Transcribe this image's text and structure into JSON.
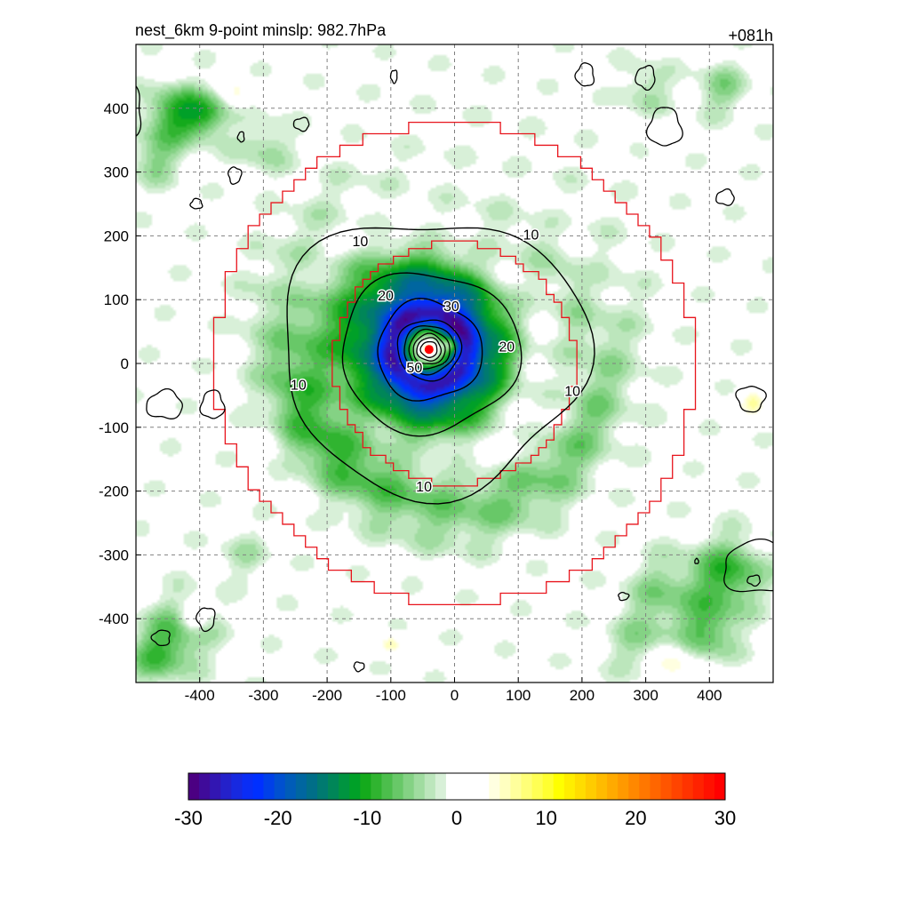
{
  "chart_data": {
    "type": "heatmap",
    "title_left": "nest_6km  9-point minslp: 982.7hPa",
    "title_right": "+081h",
    "xlim": [
      -500,
      500
    ],
    "ylim": [
      -500,
      500
    ],
    "x_ticks": [
      -400,
      -300,
      -200,
      -100,
      0,
      100,
      200,
      300,
      400
    ],
    "y_ticks": [
      -400,
      -300,
      -200,
      -100,
      0,
      100,
      200,
      300,
      400
    ],
    "grid": true,
    "storm_center": [
      -40,
      22
    ],
    "contour_levels": [
      10,
      20,
      30,
      40,
      50,
      60,
      70
    ],
    "contour_labels": [
      {
        "text": "10",
        "x": -148,
        "y": 190
      },
      {
        "text": "10",
        "x": 120,
        "y": 200
      },
      {
        "text": "10",
        "x": -245,
        "y": -35
      },
      {
        "text": "10",
        "x": -48,
        "y": -195
      },
      {
        "text": "10",
        "x": 185,
        "y": -45
      },
      {
        "text": "20",
        "x": -108,
        "y": 105
      },
      {
        "text": "20",
        "x": 82,
        "y": 25
      },
      {
        "text": "30",
        "x": -5,
        "y": 88
      },
      {
        "text": "50",
        "x": -63,
        "y": -8
      }
    ],
    "colorbar": {
      "min": -30,
      "max": 30,
      "ticks": [
        -30,
        -20,
        -10,
        0,
        10,
        20,
        30
      ],
      "tick_labels": [
        "-30",
        "-20",
        "-10",
        "0",
        "10",
        "20",
        "30"
      ],
      "colors": [
        "#4b0082",
        "#3f0b9a",
        "#3216b2",
        "#2421ca",
        "#1729e0",
        "#0a2df5",
        "#0030ff",
        "#0040e8",
        "#0050d0",
        "#005cb8",
        "#0066a0",
        "#006e88",
        "#007a70",
        "#008658",
        "#009440",
        "#00a028",
        "#14aa1c",
        "#30b430",
        "#4cbe4c",
        "#68c868",
        "#84d284",
        "#a0dca0",
        "#bce6bc",
        "#d8f0d8",
        "#ffffff",
        "#ffffff",
        "#ffffff",
        "#ffffff",
        "#ffffe0",
        "#ffffc0",
        "#ffff9c",
        "#ffff78",
        "#ffff54",
        "#ffff30",
        "#ffff00",
        "#ffee00",
        "#ffdd00",
        "#ffcc00",
        "#ffbb00",
        "#ffaa00",
        "#ff9900",
        "#ff8800",
        "#ff7700",
        "#ff6600",
        "#ff5500",
        "#ff4400",
        "#ff3300",
        "#ff2200",
        "#ff1100",
        "#ff0000"
      ]
    }
  },
  "colors": {
    "outer_ring": "#e8141c",
    "inner_ring": "#e8141c",
    "contour": "#000000",
    "grid": "#808080",
    "center_dot": "#ff0000"
  }
}
